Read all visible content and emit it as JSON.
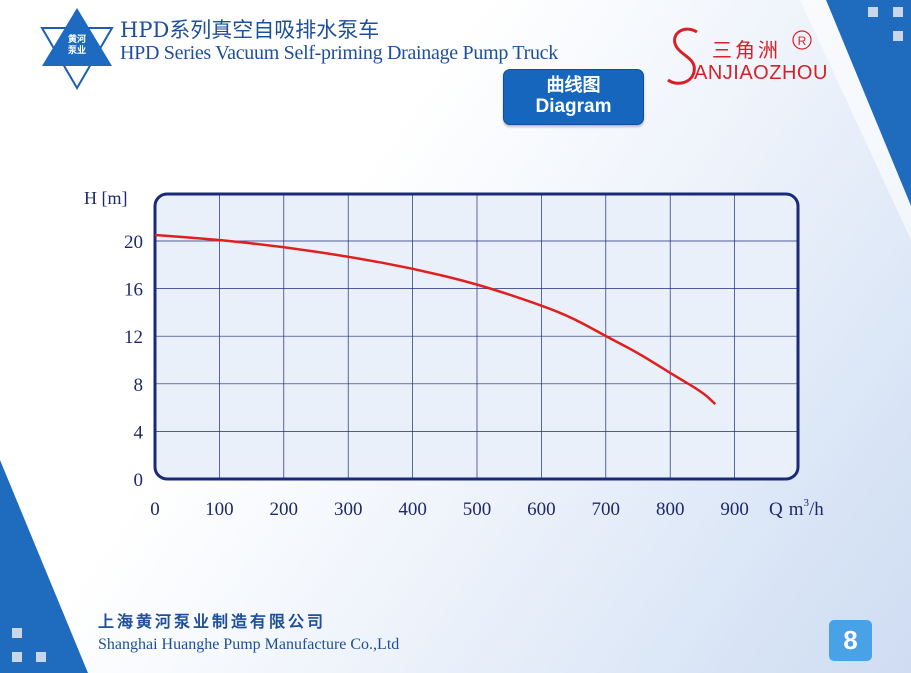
{
  "header": {
    "title_cn": "HPD系列真空自吸排水泵车",
    "title_en": "HPD Series Vacuum Self-priming Drainage Pump Truck",
    "logo_line1": "黄河",
    "logo_line2": "泵业"
  },
  "brand": {
    "name_cn": "三角洲",
    "name_en": "ANJIAOZHOU",
    "registered_mark": "R",
    "color": "#d62128"
  },
  "section_button": {
    "label_cn": "曲线图",
    "label_en": "Diagram"
  },
  "chart_data": {
    "type": "line",
    "title": "",
    "ylabel": "H [m]",
    "xlabel_prefix": "Q",
    "xlabel_unit_base": "m",
    "xlabel_unit_exp": "3",
    "xlabel_unit_tail": "/h",
    "xlim": [
      0,
      1000
    ],
    "ylim": [
      0,
      24
    ],
    "xticks": [
      "0",
      "100",
      "200",
      "300",
      "400",
      "500",
      "600",
      "700",
      "800",
      "900"
    ],
    "yticks": [
      "0",
      "4",
      "8",
      "12",
      "16",
      "20"
    ],
    "grid": true,
    "series": [
      {
        "color": "#e01f1f",
        "x": [
          0,
          100,
          200,
          300,
          400,
          500,
          600,
          650,
          700,
          750,
          800,
          850,
          870
        ],
        "y": [
          20.5,
          20.1,
          19.5,
          18.7,
          17.7,
          16.4,
          14.6,
          13.5,
          12.0,
          10.6,
          8.9,
          7.3,
          6.3
        ]
      }
    ]
  },
  "footer": {
    "company_cn": "上海黄河泵业制造有限公司",
    "company_en": "Shanghai Huanghe Pump Manufacture Co.,Ltd",
    "page_number": "8"
  }
}
